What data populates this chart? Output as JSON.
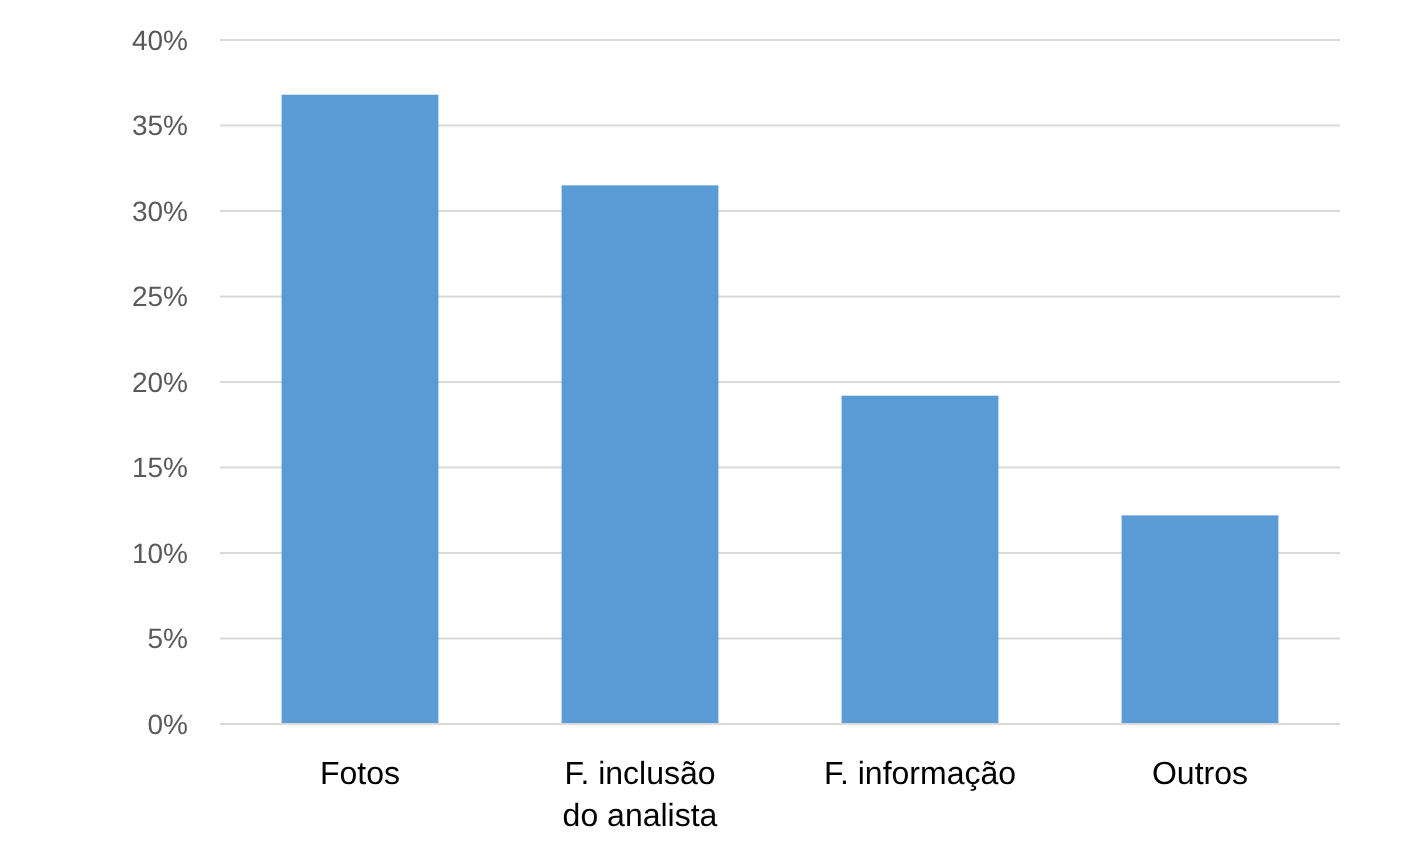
{
  "chart_data": {
    "type": "bar",
    "categories": [
      "Fotos",
      "F. inclusão do analista",
      "F. informação",
      "Outros"
    ],
    "values": [
      36.8,
      31.5,
      19.2,
      12.2
    ],
    "color": "#5b9bd5",
    "ylim": [
      0,
      40
    ],
    "yticks": [
      {
        "value": 0,
        "label": "0%"
      },
      {
        "value": 5,
        "label": "5%"
      },
      {
        "value": 10,
        "label": "10%"
      },
      {
        "value": 15,
        "label": "15%"
      },
      {
        "value": 20,
        "label": "20%"
      },
      {
        "value": 25,
        "label": "25%"
      },
      {
        "value": 30,
        "label": "30%"
      },
      {
        "value": 35,
        "label": "35%"
      },
      {
        "value": 40,
        "label": "40%"
      }
    ],
    "grid": true
  }
}
